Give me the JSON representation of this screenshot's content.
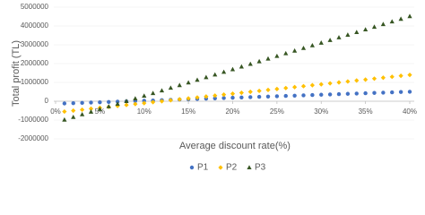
{
  "chart_data": {
    "type": "scatter",
    "xlabel": "Average discount rate(%)",
    "ylabel": "Total profit (TL)",
    "x": [
      1,
      2,
      3,
      4,
      5,
      6,
      7,
      8,
      9,
      10,
      11,
      12,
      13,
      14,
      15,
      16,
      17,
      18,
      19,
      20,
      21,
      22,
      23,
      24,
      25,
      26,
      27,
      28,
      29,
      30,
      31,
      32,
      33,
      34,
      35,
      36,
      37,
      38,
      39,
      40
    ],
    "series": [
      {
        "name": "P1",
        "color": "#4472c4",
        "marker": "circle",
        "values": [
          -119000,
          -103000,
          -87000,
          -71000,
          -55000,
          -39000,
          -23000,
          -7000,
          9000,
          25000,
          41000,
          57000,
          73000,
          89000,
          105000,
          121000,
          137000,
          153000,
          169000,
          185000,
          201000,
          217000,
          233000,
          249000,
          265000,
          281000,
          297000,
          313000,
          329000,
          345000,
          361000,
          377000,
          393000,
          409000,
          425000,
          441000,
          457000,
          473000,
          489000,
          505000
        ]
      },
      {
        "name": "P2",
        "color": "#ffc000",
        "marker": "diamond",
        "values": [
          -550000,
          -500000,
          -450000,
          -400000,
          -350000,
          -300000,
          -250000,
          -200000,
          -150000,
          -100000,
          -50000,
          0,
          50000,
          100000,
          150000,
          200000,
          250000,
          300000,
          350000,
          400000,
          450000,
          500000,
          550000,
          600000,
          650000,
          700000,
          750000,
          800000,
          850000,
          900000,
          950000,
          1000000,
          1050000,
          1100000,
          1150000,
          1200000,
          1250000,
          1300000,
          1350000,
          1400000
        ]
      },
      {
        "name": "P3",
        "color": "#375623",
        "marker": "triangle",
        "values": [
          -986000,
          -845000,
          -704000,
          -563000,
          -422000,
          -281000,
          -140000,
          1000,
          142000,
          283000,
          424000,
          565000,
          706000,
          847000,
          988000,
          1129000,
          1270000,
          1411000,
          1552000,
          1693000,
          1834000,
          1975000,
          2116000,
          2257000,
          2398000,
          2539000,
          2680000,
          2821000,
          2962000,
          3103000,
          3244000,
          3385000,
          3526000,
          3667000,
          3808000,
          3949000,
          4090000,
          4231000,
          4372000,
          4513000
        ]
      }
    ],
    "xlim": [
      0,
      40
    ],
    "xticks": [
      {
        "value": 0,
        "label": "0%"
      },
      {
        "value": 5,
        "label": "5%"
      },
      {
        "value": 10,
        "label": "10%"
      },
      {
        "value": 15,
        "label": "15%"
      },
      {
        "value": 20,
        "label": "20%"
      },
      {
        "value": 25,
        "label": "25%"
      },
      {
        "value": 30,
        "label": "30%"
      },
      {
        "value": 35,
        "label": "35%"
      },
      {
        "value": 40,
        "label": "40%"
      }
    ],
    "ylim": [
      -2000000,
      5000000
    ],
    "yticks": [
      -2000000,
      -1000000,
      0,
      1000000,
      2000000,
      3000000,
      4000000,
      5000000
    ],
    "grid": true,
    "legend": "bottom"
  }
}
